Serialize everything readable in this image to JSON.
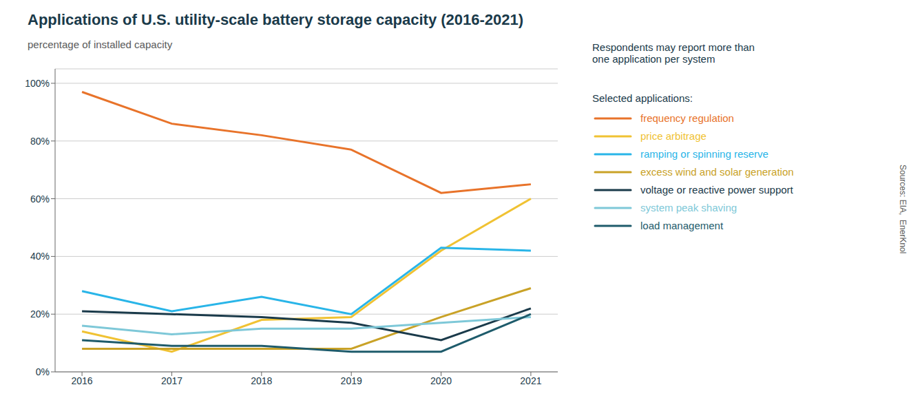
{
  "chart_data": {
    "type": "line",
    "title": "Applications of U.S. utility-scale battery storage capacity (2016-2021)",
    "subtitle": "percentage of installed capacity",
    "annotations": [
      "Respondents may report more than\none application per system",
      "Selected applications:",
      "Sources: EIA,  EnerKnol"
    ],
    "x": [
      2016,
      2017,
      2018,
      2019,
      2020,
      2021
    ],
    "xlim": [
      2015.7,
      2021.3
    ],
    "xticks": [
      2016,
      2017,
      2018,
      2019,
      2020,
      2021
    ],
    "ylim": [
      0,
      105
    ],
    "yticks": [
      {
        "value": 0,
        "label": "0%"
      },
      {
        "value": 20,
        "label": "20%"
      },
      {
        "value": 40,
        "label": "40%"
      },
      {
        "value": 60,
        "label": "60%"
      },
      {
        "value": 80,
        "label": "80%"
      },
      {
        "value": 100,
        "label": "100%"
      }
    ],
    "grid": true,
    "legend": "right",
    "series": [
      {
        "name": "frequency regulation",
        "color": "#e8732a",
        "values": [
          97,
          86,
          82,
          77,
          62,
          65
        ]
      },
      {
        "name": "price arbitrage",
        "color": "#f0c233",
        "values": [
          14,
          7,
          18,
          19,
          42,
          60
        ]
      },
      {
        "name": "ramping or spinning reserve",
        "color": "#29b5e8",
        "values": [
          28,
          21,
          26,
          20,
          43,
          42
        ]
      },
      {
        "name": "excess wind and solar generation",
        "color": "#c9a227",
        "values": [
          8,
          8,
          8,
          8,
          19,
          29
        ]
      },
      {
        "name": "voltage or reactive power support",
        "color": "#1a3a4a",
        "values": [
          21,
          20,
          19,
          17,
          11,
          22
        ]
      },
      {
        "name": "system peak shaving",
        "color": "#7ec8d8",
        "values": [
          16,
          13,
          15,
          15,
          17,
          19
        ]
      },
      {
        "name": "load management",
        "color": "#1e5b6b",
        "values": [
          11,
          9,
          9,
          7,
          7,
          20
        ]
      }
    ]
  }
}
